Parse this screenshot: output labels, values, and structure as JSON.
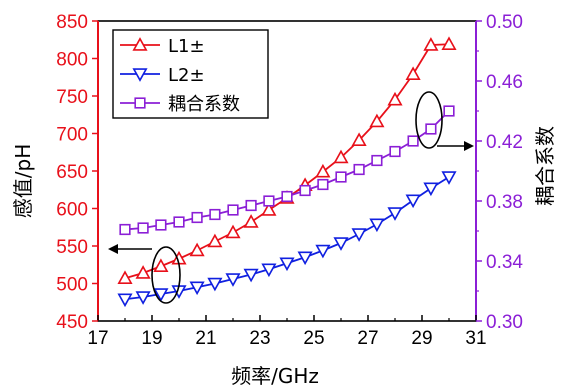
{
  "chart_data": {
    "type": "line",
    "xlabel": "频率/GHz",
    "ylabel_left": "感值/pH",
    "ylabel_right": "耦合系数",
    "xlim": [
      17,
      31
    ],
    "ylim_left": [
      450,
      850
    ],
    "ylim_right": [
      0.3,
      0.5
    ],
    "x_ticks": [
      17,
      19,
      21,
      23,
      25,
      27,
      29,
      31
    ],
    "y_left_ticks": [
      450,
      500,
      550,
      600,
      650,
      700,
      750,
      800,
      850
    ],
    "y_right_ticks": [
      0.3,
      0.34,
      0.38,
      0.42,
      0.46,
      0.5
    ],
    "legend_position": "top-left",
    "grid": false,
    "colors": {
      "left_axis": "#e8101a",
      "right_axis": "#8b1fd6",
      "L1": "#e8101a",
      "L2": "#1020e0",
      "coupling": "#8b1fd6"
    },
    "series": [
      {
        "name": "L1±",
        "axis": "left",
        "marker": "triangle-up",
        "x": [
          18,
          18.67,
          19.33,
          20,
          20.67,
          21.33,
          22,
          22.67,
          23.33,
          24,
          24.67,
          25.33,
          26,
          26.67,
          27.33,
          28,
          28.67,
          29.33,
          30
        ],
        "values": [
          507,
          514,
          523,
          533,
          544,
          556,
          568,
          582,
          598,
          614,
          631,
          649,
          668,
          691,
          716,
          745,
          779,
          818,
          819
        ]
      },
      {
        "name": "L2±",
        "axis": "left",
        "marker": "triangle-down",
        "x": [
          18,
          18.67,
          19.33,
          20,
          20.67,
          21.33,
          22,
          22.67,
          23.33,
          24,
          24.67,
          25.33,
          26,
          26.67,
          27.33,
          28,
          28.67,
          29.33,
          30
        ],
        "values": [
          479,
          482,
          486,
          490,
          495,
          500,
          506,
          512,
          519,
          527,
          535,
          544,
          554,
          566,
          579,
          594,
          611,
          627,
          642
        ]
      },
      {
        "name": "耦合系数",
        "axis": "right",
        "marker": "square",
        "x": [
          18,
          18.67,
          19.33,
          20,
          20.67,
          21.33,
          22,
          22.67,
          23.33,
          24,
          24.67,
          25.33,
          26,
          26.67,
          27.33,
          28,
          28.67,
          29.33,
          30
        ],
        "values": [
          0.361,
          0.362,
          0.364,
          0.366,
          0.369,
          0.371,
          0.374,
          0.377,
          0.38,
          0.383,
          0.387,
          0.391,
          0.396,
          0.401,
          0.407,
          0.413,
          0.42,
          0.428,
          0.44
        ]
      }
    ]
  }
}
